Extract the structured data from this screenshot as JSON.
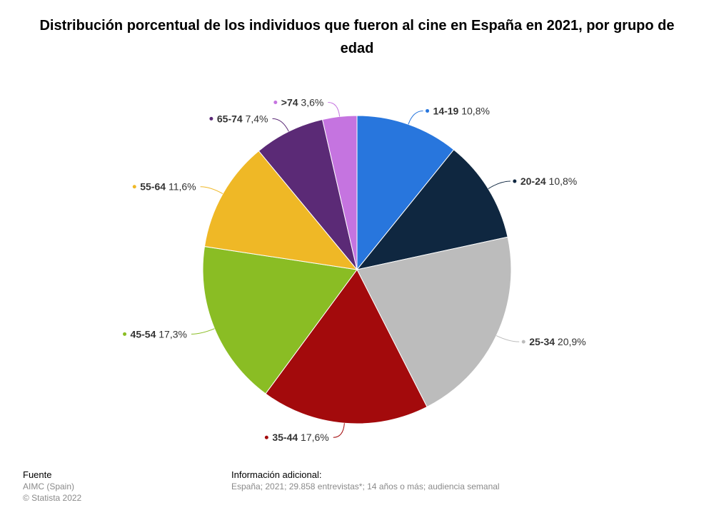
{
  "title": "Distribución porcentual de los individuos que fueron al cine en España en 2021, por grupo de edad",
  "chart_data": {
    "type": "pie",
    "title": "Distribución porcentual de los individuos que fueron al cine en España en 2021, por grupo de edad",
    "unit": "%",
    "slices": [
      {
        "label": "14-19",
        "value": 10.8,
        "display": "10,8%",
        "color": "#2876dd"
      },
      {
        "label": "20-24",
        "value": 10.8,
        "display": "10,8%",
        "color": "#0f2740"
      },
      {
        "label": "25-34",
        "value": 20.9,
        "display": "20,9%",
        "color": "#bcbcbc"
      },
      {
        "label": "35-44",
        "value": 17.6,
        "display": "17,6%",
        "color": "#a30a0c"
      },
      {
        "label": "45-54",
        "value": 17.3,
        "display": "17,3%",
        "color": "#8abd24"
      },
      {
        "label": "55-64",
        "value": 11.6,
        "display": "11,6%",
        "color": "#efb826"
      },
      {
        "label": "65-74",
        "value": 7.4,
        "display": "7,4%",
        "color": "#5b2a76"
      },
      {
        "label": ">74",
        "value": 3.6,
        "display": "3,6%",
        "color": "#c574e0"
      }
    ]
  },
  "footer": {
    "source_heading": "Fuente",
    "source_lines": [
      "AIMC (Spain)",
      "© Statista 2022"
    ],
    "info_heading": "Información adicional:",
    "info_text": "España; 2021; 29.858 entrevistas*; 14 años o más; audiencia semanal"
  }
}
